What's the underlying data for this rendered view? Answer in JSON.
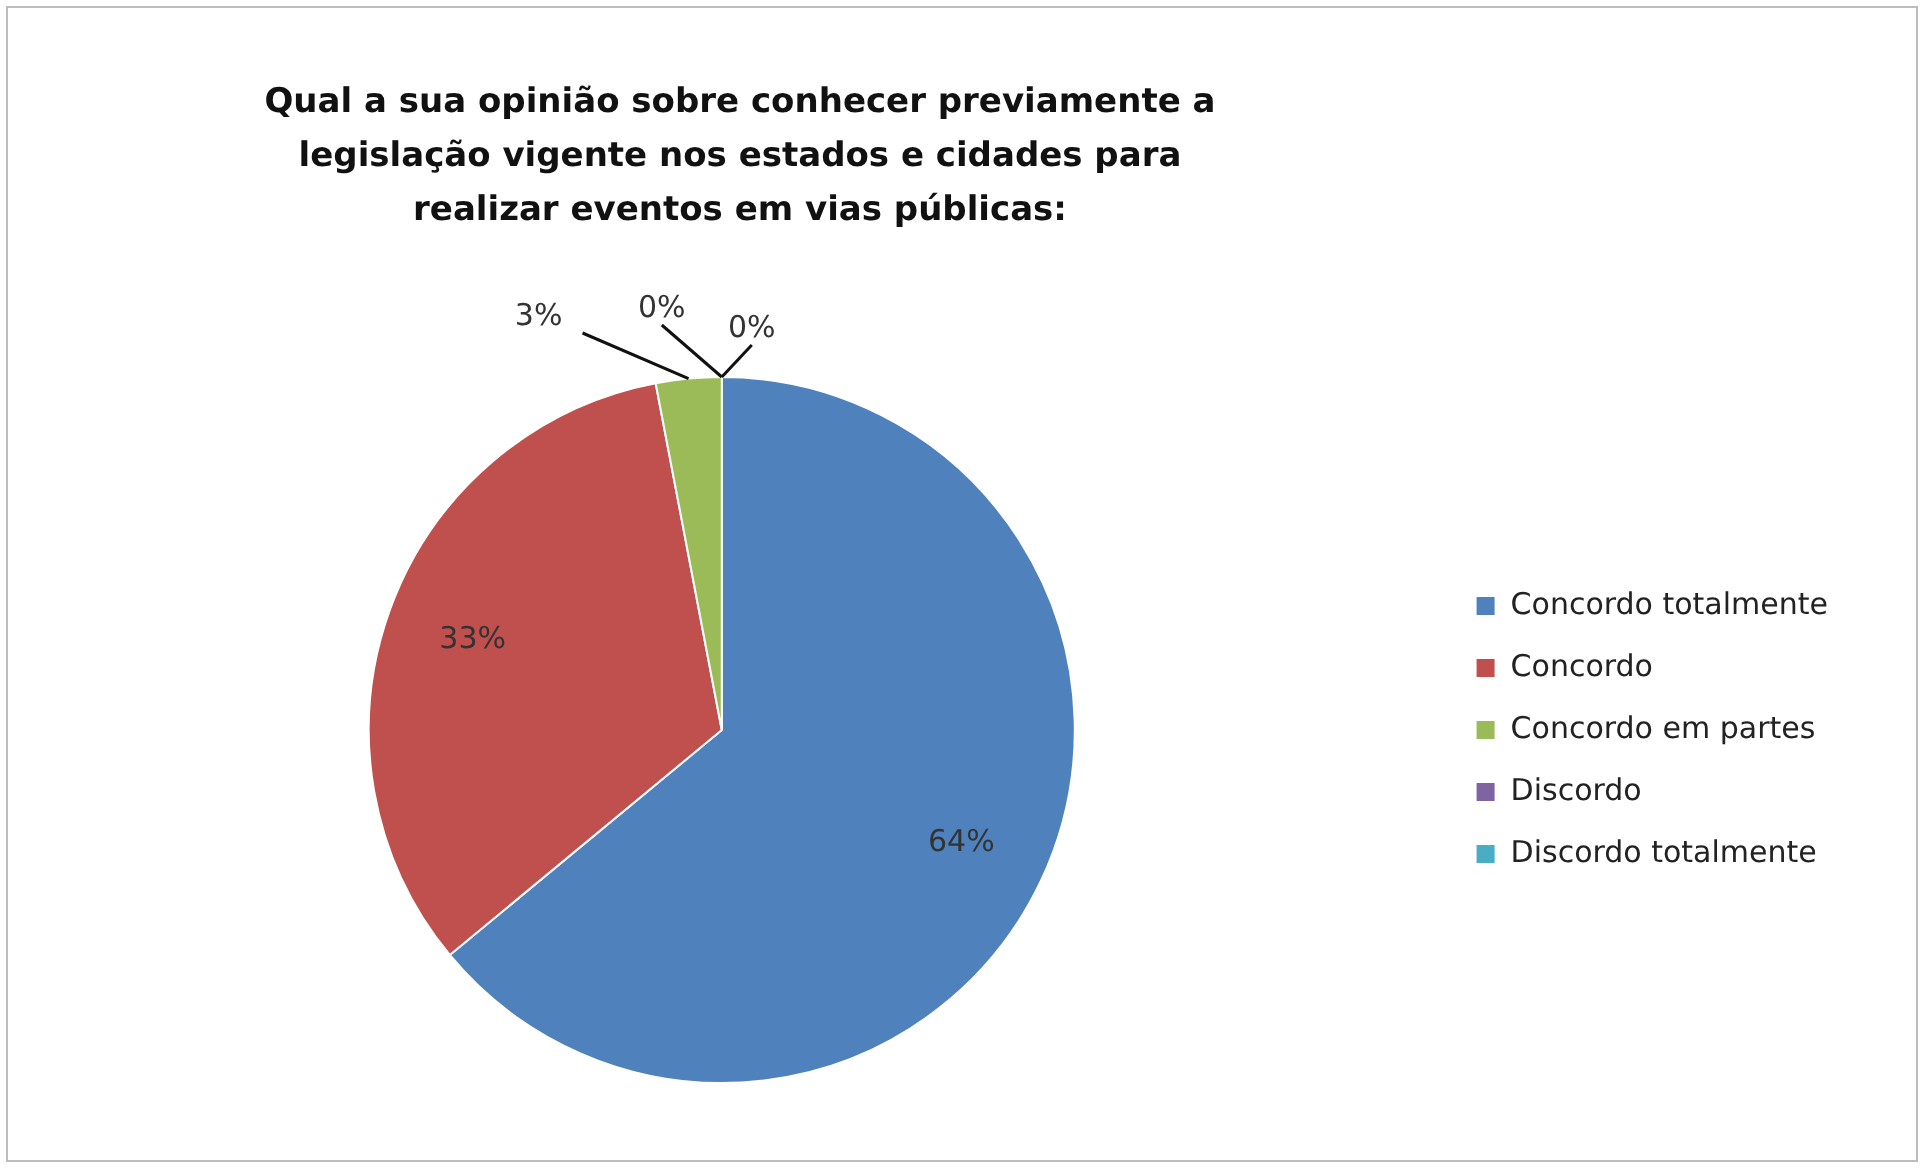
{
  "chart_data": {
    "type": "pie",
    "title": "Qual a sua opinião sobre conhecer previamente a legislação vigente nos estados e cidades para realizar eventos em vias públicas:",
    "categories": [
      "Concordo totalmente",
      "Concordo",
      "Concordo em partes",
      "Discordo",
      "Discordo totalmente"
    ],
    "values": [
      64,
      33,
      3,
      0,
      0
    ],
    "colors": [
      "#4f81bd",
      "#c0504d",
      "#9bbb59",
      "#8064a2",
      "#4bacc6"
    ],
    "value_labels": [
      "64%",
      "33%",
      "3%",
      "0%",
      "0%"
    ],
    "legend": "right"
  }
}
